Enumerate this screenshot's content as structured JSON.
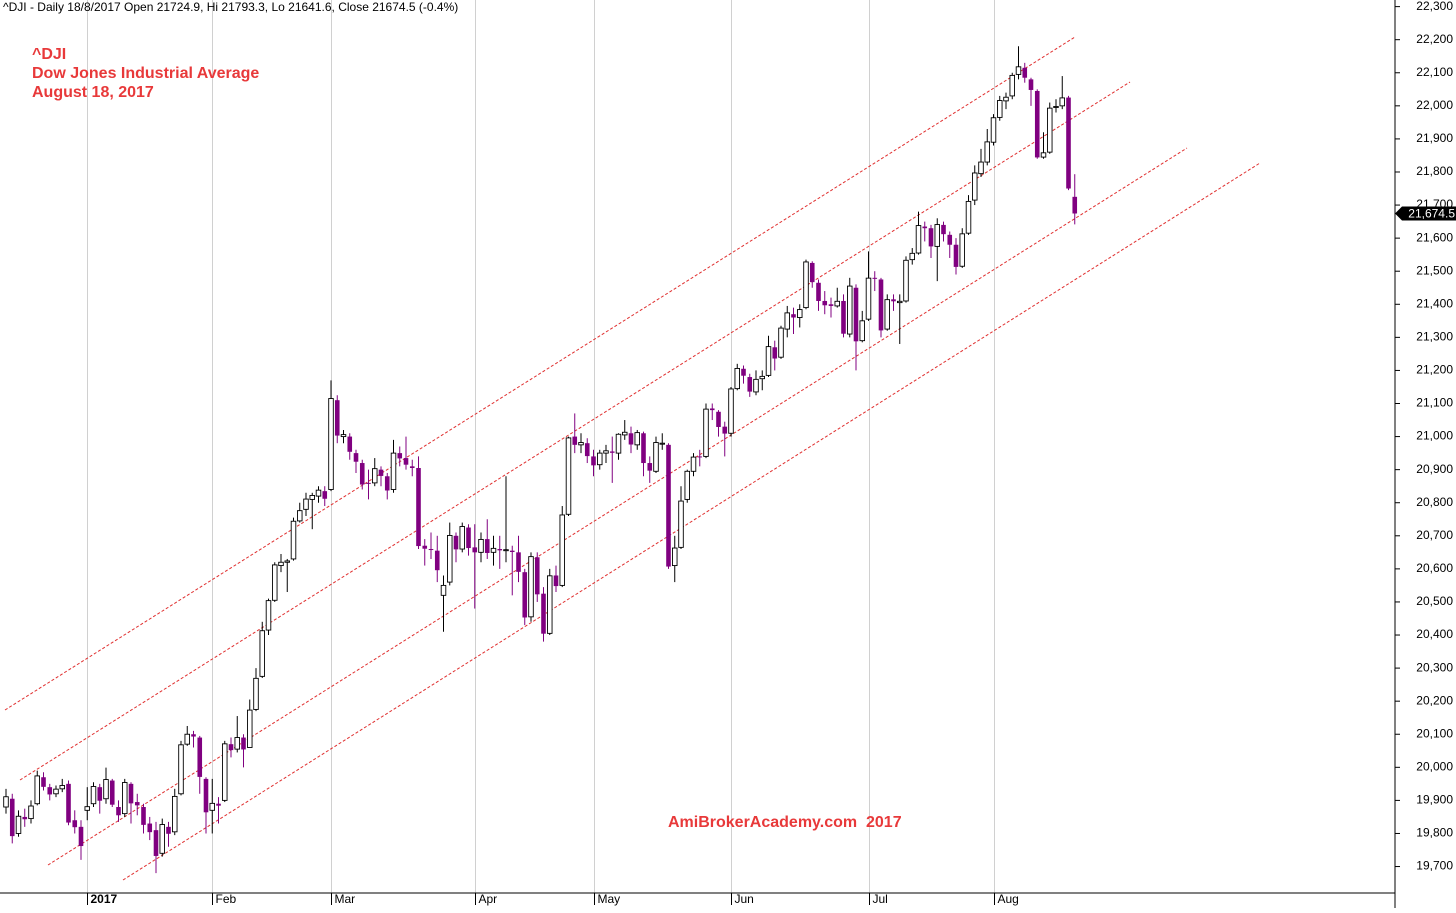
{
  "chart_data": {
    "type": "candlestick",
    "title": "^DJI - Daily 18/8/2017 Open 21724.9, Hi 21793.3, Lo 21641.6, Close 21674.5 (-0.4%)",
    "annotations": [
      "^DJI",
      "Dow Jones Industrial Average",
      "August 18, 2017"
    ],
    "watermark": "AmiBrokerAcademy.com  2017",
    "up_color": "#ffffff",
    "down_color": "#800080",
    "ylim": [
      19620,
      22320
    ],
    "yticks": [
      {
        "value": 19700,
        "label": "19,700"
      },
      {
        "value": 19800,
        "label": "19,800"
      },
      {
        "value": 19900,
        "label": "19,900"
      },
      {
        "value": 20000,
        "label": "20,000"
      },
      {
        "value": 20100,
        "label": "20,100"
      },
      {
        "value": 20200,
        "label": "20,200"
      },
      {
        "value": 20300,
        "label": "20,300"
      },
      {
        "value": 20400,
        "label": "20,400"
      },
      {
        "value": 20500,
        "label": "20,500"
      },
      {
        "value": 20600,
        "label": "20,600"
      },
      {
        "value": 20700,
        "label": "20,700"
      },
      {
        "value": 20800,
        "label": "20,800"
      },
      {
        "value": 20900,
        "label": "20,900"
      },
      {
        "value": 21000,
        "label": "21,000"
      },
      {
        "value": 21100,
        "label": "21,100"
      },
      {
        "value": 21200,
        "label": "21,200"
      },
      {
        "value": 21300,
        "label": "21,300"
      },
      {
        "value": 21400,
        "label": "21,400"
      },
      {
        "value": 21500,
        "label": "21,500"
      },
      {
        "value": 21600,
        "label": "21,600"
      },
      {
        "value": 21700,
        "label": "21,700"
      },
      {
        "value": 21800,
        "label": "21,800"
      },
      {
        "value": 21900,
        "label": "21,900"
      },
      {
        "value": 22000,
        "label": "22,000"
      },
      {
        "value": 22100,
        "label": "22,100"
      },
      {
        "value": 22200,
        "label": "22,200"
      },
      {
        "value": 22300,
        "label": "22,300"
      }
    ],
    "last_price": {
      "value": 21674.5,
      "label": "21,674.5"
    },
    "categories": [
      null,
      null,
      null,
      null,
      null,
      null,
      null,
      null,
      null,
      null,
      null,
      null,
      null,
      "2017",
      null,
      null,
      null,
      null,
      null,
      null,
      null,
      null,
      null,
      null,
      null,
      null,
      null,
      null,
      null,
      null,
      null,
      null,
      null,
      "Feb",
      null,
      null,
      null,
      null,
      null,
      null,
      null,
      null,
      null,
      null,
      null,
      null,
      null,
      null,
      null,
      null,
      null,
      null,
      "Mar",
      null,
      null,
      null,
      null,
      null,
      null,
      null,
      null,
      null,
      null,
      null,
      null,
      null,
      null,
      null,
      null,
      null,
      null,
      null,
      null,
      null,
      null,
      "Apr",
      null,
      null,
      null,
      null,
      null,
      null,
      null,
      null,
      null,
      null,
      null,
      null,
      null,
      null,
      null,
      null,
      null,
      null,
      "May",
      null,
      null,
      null,
      null,
      null,
      null,
      null,
      null,
      null,
      null,
      null,
      null,
      null,
      null,
      null,
      null,
      null,
      null,
      null,
      null,
      null,
      "Jun",
      null,
      null,
      null,
      null,
      null,
      null,
      null,
      null,
      null,
      null,
      null,
      null,
      null,
      null,
      null,
      null,
      null,
      null,
      null,
      null,
      null,
      "Jul",
      null,
      null,
      null,
      null,
      null,
      null,
      null,
      null,
      null,
      null,
      null,
      null,
      null,
      null,
      null,
      null,
      null,
      null,
      null,
      "Aug",
      null,
      null,
      null,
      null,
      null,
      null,
      null,
      null,
      null,
      null,
      null,
      null,
      null
    ],
    "open": [
      19880,
      19905,
      19800,
      19850,
      19845,
      19890,
      19970,
      19940,
      19920,
      19935,
      19950,
      19840,
      19820,
      19870,
      19890,
      19940,
      19905,
      19960,
      19880,
      19860,
      19950,
      19895,
      19880,
      19830,
      19810,
      19740,
      19820,
      19805,
      19920,
      20070,
      20100,
      20090,
      19965,
      19870,
      19890,
      19900,
      20070,
      20055,
      20090,
      20060,
      20175,
      20275,
      20415,
      20505,
      20610,
      20620,
      20630,
      20745,
      20780,
      20810,
      20820,
      20835,
      20840,
      21110,
      21000,
      21000,
      20950,
      20920,
      20860,
      20860,
      20900,
      20880,
      20840,
      20950,
      20935,
      20910,
      20905,
      20670,
      20660,
      20655,
      20520,
      20560,
      20700,
      20660,
      20725,
      20665,
      20650,
      20690,
      20650,
      20660,
      20655,
      20655,
      20650,
      20590,
      20455,
      20635,
      20525,
      20405,
      20580,
      20550,
      20765,
      21000,
      20975,
      20980,
      20940,
      20915,
      20950,
      20955,
      20950,
      21005,
      21010,
      20975,
      21010,
      20920,
      20895,
      20980,
      20975,
      20610,
      20665,
      20810,
      20895,
      20940,
      20940,
      21085,
      21075,
      21030,
      21010,
      21145,
      21205,
      21180,
      21135,
      21175,
      21185,
      21270,
      21240,
      21325,
      21370,
      21360,
      21390,
      21525,
      21465,
      21410,
      21400,
      21395,
      21410,
      21310,
      21450,
      21290,
      21355,
      21480,
      21475,
      21325,
      21415,
      21405,
      21410,
      21535,
      21555,
      21635,
      21630,
      21575,
      21640,
      21610,
      21580,
      21515,
      21615,
      21715,
      21795,
      21830,
      21890,
      21965,
      22015,
      22030,
      22095,
      22115,
      22080,
      22045,
      21845,
      21860,
      21995,
      22000,
      22025,
      21724.9
    ],
    "high": [
      19935,
      19920,
      19870,
      19875,
      19900,
      19990,
      19985,
      19950,
      19945,
      19965,
      19960,
      19870,
      19840,
      19940,
      19955,
      19950,
      19999,
      19965,
      19900,
      19965,
      19955,
      19920,
      19890,
      19850,
      19835,
      19845,
      19835,
      19935,
      20080,
      20125,
      20110,
      20095,
      19970,
      19965,
      19910,
      20080,
      20090,
      20155,
      20100,
      20205,
      20300,
      20440,
      20510,
      20620,
      20645,
      20630,
      20755,
      20800,
      20830,
      20830,
      20850,
      20850,
      21170,
      21125,
      21020,
      21010,
      20960,
      20930,
      20900,
      20935,
      20910,
      20890,
      20990,
      20970,
      21000,
      20930,
      20940,
      20690,
      20710,
      20700,
      20580,
      20740,
      20710,
      20740,
      20735,
      20735,
      20710,
      20750,
      20700,
      20700,
      20880,
      20670,
      20700,
      20600,
      20650,
      20650,
      20545,
      20600,
      20610,
      20790,
      21000,
      21070,
      21010,
      20995,
      20960,
      20960,
      20975,
      21000,
      21010,
      21050,
      21030,
      21020,
      21015,
      20940,
      21000,
      21010,
      20980,
      20700,
      20850,
      20900,
      20950,
      20960,
      21100,
      21100,
      21080,
      21045,
      21150,
      21220,
      21215,
      21190,
      21200,
      21200,
      21305,
      21290,
      21335,
      21395,
      21390,
      21400,
      21535,
      21530,
      21475,
      21440,
      21420,
      21450,
      21430,
      21480,
      21460,
      21380,
      21560,
      21500,
      21480,
      21430,
      21430,
      21430,
      21545,
      21570,
      21680,
      21650,
      21640,
      21660,
      21650,
      21620,
      21600,
      21630,
      21730,
      21820,
      21870,
      21930,
      21975,
      22030,
      22040,
      22100,
      22180,
      22130,
      22085,
      22050,
      21920,
      22010,
      22020,
      22090,
      22030,
      21793.3
    ],
    "low": [
      19860,
      19770,
      19790,
      19820,
      19830,
      19885,
      19930,
      19900,
      19910,
      19925,
      19825,
      19800,
      19720,
      19840,
      19880,
      19860,
      19890,
      19880,
      19835,
      19850,
      19830,
      19855,
      19800,
      19780,
      19680,
      19730,
      19760,
      19795,
      19915,
      20065,
      20060,
      19920,
      19800,
      19800,
      19830,
      19895,
      20030,
      20045,
      20000,
      20060,
      20170,
      20270,
      20400,
      20500,
      20590,
      20530,
      20625,
      20740,
      20760,
      20720,
      20800,
      20790,
      20835,
      20980,
      20980,
      20930,
      20890,
      20840,
      20810,
      20850,
      20850,
      20810,
      20830,
      20910,
      20900,
      20880,
      20660,
      20610,
      20630,
      20560,
      20410,
      20550,
      20620,
      20650,
      20640,
      20480,
      20620,
      20630,
      20610,
      20600,
      20620,
      20520,
      20560,
      20430,
      20440,
      20500,
      20380,
      20400,
      20530,
      20545,
      20760,
      20950,
      20950,
      20920,
      20880,
      20900,
      20920,
      20860,
      20930,
      20990,
      20950,
      20960,
      20880,
      20860,
      20890,
      20960,
      20600,
      20560,
      20660,
      20800,
      20880,
      20910,
      20935,
      21050,
      21000,
      20940,
      21000,
      21140,
      21160,
      21120,
      21125,
      21140,
      21180,
      21200,
      21235,
      21300,
      21310,
      21330,
      21385,
      21450,
      21380,
      21370,
      21360,
      21390,
      21300,
      21300,
      21200,
      21285,
      21350,
      21440,
      21300,
      21320,
      21380,
      21280,
      21405,
      21520,
      21550,
      21590,
      21540,
      21470,
      21590,
      21540,
      21490,
      21510,
      21610,
      21700,
      21785,
      21820,
      21880,
      21955,
      21990,
      22020,
      22080,
      22070,
      22000,
      21840,
      21840,
      21855,
      21980,
      21990,
      21745,
      21641.6
    ],
    "close": [
      19911,
      19792,
      19852,
      19843,
      19883,
      19974,
      19941,
      19918,
      19934,
      19945,
      19833,
      19819,
      19762,
      19881,
      19942,
      19899,
      19963,
      19887,
      19855,
      19954,
      19891,
      19885,
      19826,
      19804,
      19732,
      19827,
      19799,
      19912,
      20068,
      20100,
      20093,
      19971,
      19864,
      19891,
      19884,
      20071,
      20052,
      20090,
      20054,
      20173,
      20269,
      20413,
      20504,
      20612,
      20620,
      20624,
      20744,
      20776,
      20811,
      20822,
      20838,
      20812,
      21115,
      21003,
      21006,
      20954,
      20924,
      20855,
      20858,
      20903,
      20881,
      20837,
      20950,
      20934,
      20915,
      20905,
      20669,
      20661,
      20657,
      20596,
      20550,
      20701,
      20659,
      20728,
      20663,
      20650,
      20689,
      20648,
      20662,
      20656,
      20658,
      20651,
      20591,
      20453,
      20637,
      20523,
      20404,
      20579,
      20548,
      20763,
      20996,
      20975,
      20982,
      20941,
      20913,
      20950,
      20957,
      20951,
      21007,
      21013,
      20976,
      21012,
      20920,
      20897,
      20982,
      20980,
      20607,
      20663,
      20805,
      20895,
      20938,
      20938,
      21083,
      21080,
      21029,
      21009,
      21144,
      21206,
      21184,
      21136,
      21173,
      21182,
      21272,
      21236,
      21328,
      21374,
      21360,
      21384,
      21528,
      21467,
      21410,
      21397,
      21395,
      21409,
      21311,
      21455,
      21288,
      21350,
      21479,
      21479,
      21321,
      21414,
      21409,
      21409,
      21533,
      21554,
      21638,
      21630,
      21575,
      21641,
      21612,
      21580,
      21513,
      21613,
      21711,
      21797,
      21830,
      21891,
      21964,
      22016,
      22026,
      22092,
      22118,
      22085,
      22048,
      21844,
      21858,
      21993,
      21998,
      22024,
      21750,
      21674.5
    ]
  }
}
